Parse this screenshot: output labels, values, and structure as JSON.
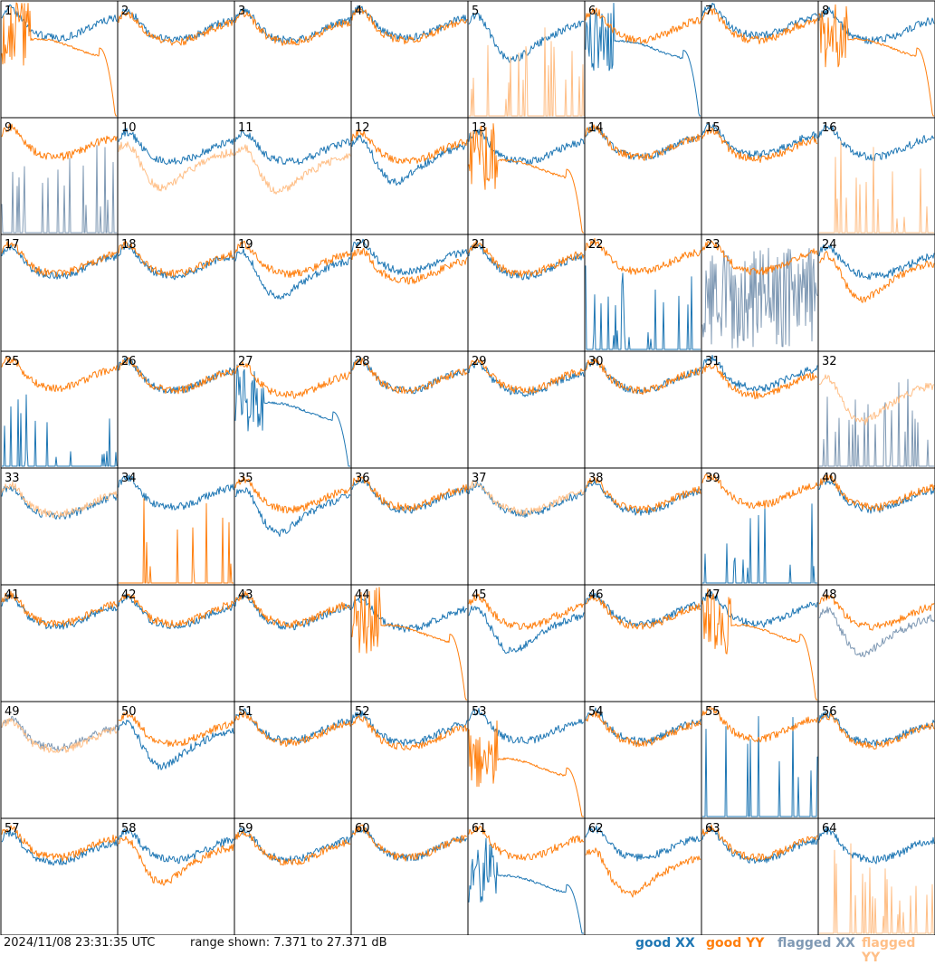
{
  "footer": {
    "timestamp": "2024/11/08 23:31:35 UTC",
    "range_text": "range shown: 7.371 to 27.371 dB"
  },
  "legend": [
    {
      "label": "good XX",
      "color": "#1f77b4"
    },
    {
      "label": "good YY",
      "color": "#ff7f0e"
    },
    {
      "label": "flagged XX",
      "color": "#7f99b4"
    },
    {
      "label": "flagged YY",
      "color": "#ffbf87"
    }
  ],
  "chart_data": {
    "type": "line",
    "title": "",
    "ylim": [
      7.371,
      27.371
    ],
    "y_unit": "dB",
    "grid_layout": "8x8",
    "series_names": [
      "good XX",
      "good YY",
      "flagged XX",
      "flagged YY"
    ],
    "panels": [
      {
        "id": "1",
        "xx": {
          "flag": "good",
          "mode": "normal",
          "level": 0.8
        },
        "yy": {
          "flag": "good",
          "mode": "dropout",
          "level": 0.72
        }
      },
      {
        "id": "2",
        "xx": {
          "flag": "good",
          "mode": "normal",
          "level": 0.78
        },
        "yy": {
          "flag": "good",
          "mode": "normal",
          "level": 0.76
        }
      },
      {
        "id": "3",
        "xx": {
          "flag": "good",
          "mode": "normal",
          "level": 0.78
        },
        "yy": {
          "flag": "good",
          "mode": "normal",
          "level": 0.76
        }
      },
      {
        "id": "4",
        "xx": {
          "flag": "good",
          "mode": "normal",
          "level": 0.8
        },
        "yy": {
          "flag": "good",
          "mode": "normal",
          "level": 0.78
        }
      },
      {
        "id": "5",
        "xx": {
          "flag": "good",
          "mode": "dip",
          "level": 0.75
        },
        "yy": {
          "flag": "flagged",
          "mode": "spikes",
          "level": 0.1
        }
      },
      {
        "id": "6",
        "xx": {
          "flag": "good",
          "mode": "dropout",
          "level": 0.7
        },
        "yy": {
          "flag": "good",
          "mode": "normal",
          "level": 0.78
        }
      },
      {
        "id": "7",
        "xx": {
          "flag": "good",
          "mode": "normal",
          "level": 0.82
        },
        "yy": {
          "flag": "good",
          "mode": "normal",
          "level": 0.78
        }
      },
      {
        "id": "8",
        "xx": {
          "flag": "good",
          "mode": "normal",
          "level": 0.78
        },
        "yy": {
          "flag": "good",
          "mode": "dropout",
          "level": 0.72
        }
      },
      {
        "id": "9",
        "xx": {
          "flag": "flagged",
          "mode": "spikes",
          "level": 0.15
        },
        "yy": {
          "flag": "good",
          "mode": "normal",
          "level": 0.78
        }
      },
      {
        "id": "10",
        "xx": {
          "flag": "good",
          "mode": "normal",
          "level": 0.74
        },
        "yy": {
          "flag": "flagged",
          "mode": "dip",
          "level": 0.65
        }
      },
      {
        "id": "11",
        "xx": {
          "flag": "good",
          "mode": "normal",
          "level": 0.74
        },
        "yy": {
          "flag": "flagged",
          "mode": "dip",
          "level": 0.62
        }
      },
      {
        "id": "12",
        "xx": {
          "flag": "good",
          "mode": "dip",
          "level": 0.7
        },
        "yy": {
          "flag": "good",
          "mode": "normal",
          "level": 0.74
        }
      },
      {
        "id": "13",
        "xx": {
          "flag": "good",
          "mode": "normal",
          "level": 0.74
        },
        "yy": {
          "flag": "good",
          "mode": "dropout",
          "level": 0.68
        }
      },
      {
        "id": "14",
        "xx": {
          "flag": "good",
          "mode": "normal",
          "level": 0.78
        },
        "yy": {
          "flag": "good",
          "mode": "normal",
          "level": 0.78
        }
      },
      {
        "id": "15",
        "xx": {
          "flag": "good",
          "mode": "normal",
          "level": 0.8
        },
        "yy": {
          "flag": "good",
          "mode": "normal",
          "level": 0.76
        }
      },
      {
        "id": "16",
        "xx": {
          "flag": "good",
          "mode": "normal",
          "level": 0.78
        },
        "yy": {
          "flag": "flagged",
          "mode": "spikes",
          "level": 0.12
        }
      },
      {
        "id": "17",
        "xx": {
          "flag": "good",
          "mode": "normal",
          "level": 0.76
        },
        "yy": {
          "flag": "good",
          "mode": "normal",
          "level": 0.78
        }
      },
      {
        "id": "18",
        "xx": {
          "flag": "good",
          "mode": "normal",
          "level": 0.76
        },
        "yy": {
          "flag": "good",
          "mode": "normal",
          "level": 0.78
        }
      },
      {
        "id": "19",
        "xx": {
          "flag": "good",
          "mode": "dip",
          "level": 0.72
        },
        "yy": {
          "flag": "good",
          "mode": "normal",
          "level": 0.78
        }
      },
      {
        "id": "20",
        "xx": {
          "flag": "good",
          "mode": "normal",
          "level": 0.8
        },
        "yy": {
          "flag": "good",
          "mode": "normal",
          "level": 0.72
        }
      },
      {
        "id": "21",
        "xx": {
          "flag": "good",
          "mode": "normal",
          "level": 0.76
        },
        "yy": {
          "flag": "good",
          "mode": "normal",
          "level": 0.78
        }
      },
      {
        "id": "22",
        "xx": {
          "flag": "good",
          "mode": "spikes",
          "level": 0.08
        },
        "yy": {
          "flag": "good",
          "mode": "normal",
          "level": 0.8
        }
      },
      {
        "id": "23",
        "xx": {
          "flag": "flagged",
          "mode": "noise",
          "level": 0.45
        },
        "yy": {
          "flag": "good",
          "mode": "normal",
          "level": 0.8
        }
      },
      {
        "id": "24",
        "xx": {
          "flag": "good",
          "mode": "normal",
          "level": 0.76
        },
        "yy": {
          "flag": "good",
          "mode": "dip",
          "level": 0.7
        }
      },
      {
        "id": "25",
        "xx": {
          "flag": "good",
          "mode": "spikes",
          "level": 0.04
        },
        "yy": {
          "flag": "good",
          "mode": "normal",
          "level": 0.8
        }
      },
      {
        "id": "26",
        "xx": {
          "flag": "good",
          "mode": "normal",
          "level": 0.78
        },
        "yy": {
          "flag": "good",
          "mode": "normal",
          "level": 0.78
        }
      },
      {
        "id": "27",
        "xx": {
          "flag": "good",
          "mode": "dropout",
          "level": 0.6
        },
        "yy": {
          "flag": "good",
          "mode": "normal",
          "level": 0.74
        }
      },
      {
        "id": "28",
        "xx": {
          "flag": "good",
          "mode": "normal",
          "level": 0.78
        },
        "yy": {
          "flag": "good",
          "mode": "normal",
          "level": 0.78
        }
      },
      {
        "id": "29",
        "xx": {
          "flag": "good",
          "mode": "normal",
          "level": 0.76
        },
        "yy": {
          "flag": "good",
          "mode": "normal",
          "level": 0.78
        }
      },
      {
        "id": "30",
        "xx": {
          "flag": "good",
          "mode": "normal",
          "level": 0.78
        },
        "yy": {
          "flag": "good",
          "mode": "normal",
          "level": 0.78
        }
      },
      {
        "id": "31",
        "xx": {
          "flag": "good",
          "mode": "normal",
          "level": 0.8
        },
        "yy": {
          "flag": "good",
          "mode": "normal",
          "level": 0.74
        }
      },
      {
        "id": "32",
        "xx": {
          "flag": "flagged",
          "mode": "spikes",
          "level": 0.08
        },
        "yy": {
          "flag": "flagged",
          "mode": "dip",
          "level": 0.65
        }
      },
      {
        "id": "33",
        "xx": {
          "flag": "good",
          "mode": "normal",
          "level": 0.7
        },
        "yy": {
          "flag": "flagged",
          "mode": "normal",
          "level": 0.72
        }
      },
      {
        "id": "34",
        "xx": {
          "flag": "good",
          "mode": "normal",
          "level": 0.78
        },
        "yy": {
          "flag": "good",
          "mode": "spikes",
          "level": 0.12
        }
      },
      {
        "id": "35",
        "xx": {
          "flag": "good",
          "mode": "dip",
          "level": 0.7
        },
        "yy": {
          "flag": "good",
          "mode": "normal",
          "level": 0.76
        }
      },
      {
        "id": "36",
        "xx": {
          "flag": "good",
          "mode": "normal",
          "level": 0.76
        },
        "yy": {
          "flag": "good",
          "mode": "normal",
          "level": 0.78
        }
      },
      {
        "id": "37",
        "xx": {
          "flag": "good",
          "mode": "normal",
          "level": 0.72
        },
        "yy": {
          "flag": "flagged",
          "mode": "normal",
          "level": 0.74
        }
      },
      {
        "id": "38",
        "xx": {
          "flag": "good",
          "mode": "normal",
          "level": 0.74
        },
        "yy": {
          "flag": "good",
          "mode": "normal",
          "level": 0.76
        }
      },
      {
        "id": "39",
        "xx": {
          "flag": "good",
          "mode": "spikes",
          "level": 0.06
        },
        "yy": {
          "flag": "good",
          "mode": "normal",
          "level": 0.8
        }
      },
      {
        "id": "40",
        "xx": {
          "flag": "good",
          "mode": "normal",
          "level": 0.76
        },
        "yy": {
          "flag": "good",
          "mode": "normal",
          "level": 0.78
        }
      },
      {
        "id": "41",
        "xx": {
          "flag": "good",
          "mode": "normal",
          "level": 0.76
        },
        "yy": {
          "flag": "good",
          "mode": "normal",
          "level": 0.78
        }
      },
      {
        "id": "42",
        "xx": {
          "flag": "good",
          "mode": "normal",
          "level": 0.76
        },
        "yy": {
          "flag": "good",
          "mode": "normal",
          "level": 0.78
        }
      },
      {
        "id": "43",
        "xx": {
          "flag": "good",
          "mode": "normal",
          "level": 0.76
        },
        "yy": {
          "flag": "good",
          "mode": "normal",
          "level": 0.78
        }
      },
      {
        "id": "44",
        "xx": {
          "flag": "good",
          "mode": "normal",
          "level": 0.74
        },
        "yy": {
          "flag": "good",
          "mode": "dropout",
          "level": 0.7
        }
      },
      {
        "id": "45",
        "xx": {
          "flag": "good",
          "mode": "dip",
          "level": 0.68
        },
        "yy": {
          "flag": "good",
          "mode": "normal",
          "level": 0.76
        }
      },
      {
        "id": "46",
        "xx": {
          "flag": "good",
          "mode": "normal",
          "level": 0.78
        },
        "yy": {
          "flag": "good",
          "mode": "normal",
          "level": 0.76
        }
      },
      {
        "id": "47",
        "xx": {
          "flag": "good",
          "mode": "normal",
          "level": 0.78
        },
        "yy": {
          "flag": "good",
          "mode": "dropout",
          "level": 0.7
        }
      },
      {
        "id": "48",
        "xx": {
          "flag": "flagged",
          "mode": "dip",
          "level": 0.66
        },
        "yy": {
          "flag": "good",
          "mode": "normal",
          "level": 0.76
        }
      },
      {
        "id": "49",
        "xx": {
          "flag": "flagged",
          "mode": "normal",
          "level": 0.72
        },
        "yy": {
          "flag": "flagged",
          "mode": "normal",
          "level": 0.7
        }
      },
      {
        "id": "50",
        "xx": {
          "flag": "good",
          "mode": "dip",
          "level": 0.7
        },
        "yy": {
          "flag": "good",
          "mode": "normal",
          "level": 0.76
        }
      },
      {
        "id": "51",
        "xx": {
          "flag": "good",
          "mode": "normal",
          "level": 0.78
        },
        "yy": {
          "flag": "good",
          "mode": "normal",
          "level": 0.76
        }
      },
      {
        "id": "52",
        "xx": {
          "flag": "good",
          "mode": "normal",
          "level": 0.76
        },
        "yy": {
          "flag": "good",
          "mode": "normal",
          "level": 0.72
        }
      },
      {
        "id": "53",
        "xx": {
          "flag": "good",
          "mode": "normal",
          "level": 0.78
        },
        "yy": {
          "flag": "good",
          "mode": "dropout",
          "level": 0.55
        }
      },
      {
        "id": "54",
        "xx": {
          "flag": "good",
          "mode": "normal",
          "level": 0.78
        },
        "yy": {
          "flag": "good",
          "mode": "normal",
          "level": 0.76
        }
      },
      {
        "id": "55",
        "xx": {
          "flag": "good",
          "mode": "spikes",
          "level": 0.2
        },
        "yy": {
          "flag": "good",
          "mode": "normal",
          "level": 0.8
        }
      },
      {
        "id": "56",
        "xx": {
          "flag": "good",
          "mode": "normal",
          "level": 0.76
        },
        "yy": {
          "flag": "good",
          "mode": "normal",
          "level": 0.74
        }
      },
      {
        "id": "57",
        "xx": {
          "flag": "good",
          "mode": "normal",
          "level": 0.74
        },
        "yy": {
          "flag": "good",
          "mode": "normal",
          "level": 0.78
        }
      },
      {
        "id": "58",
        "xx": {
          "flag": "good",
          "mode": "normal",
          "level": 0.76
        },
        "yy": {
          "flag": "good",
          "mode": "dip",
          "level": 0.7
        }
      },
      {
        "id": "59",
        "xx": {
          "flag": "good",
          "mode": "normal",
          "level": 0.76
        },
        "yy": {
          "flag": "good",
          "mode": "normal",
          "level": 0.74
        }
      },
      {
        "id": "60",
        "xx": {
          "flag": "good",
          "mode": "normal",
          "level": 0.78
        },
        "yy": {
          "flag": "good",
          "mode": "normal",
          "level": 0.78
        }
      },
      {
        "id": "61",
        "xx": {
          "flag": "good",
          "mode": "dropout",
          "level": 0.55
        },
        "yy": {
          "flag": "good",
          "mode": "normal",
          "level": 0.78
        }
      },
      {
        "id": "62",
        "xx": {
          "flag": "good",
          "mode": "normal",
          "level": 0.78
        },
        "yy": {
          "flag": "good",
          "mode": "dip",
          "level": 0.6
        }
      },
      {
        "id": "63",
        "xx": {
          "flag": "good",
          "mode": "normal",
          "level": 0.76
        },
        "yy": {
          "flag": "good",
          "mode": "normal",
          "level": 0.78
        }
      },
      {
        "id": "64",
        "xx": {
          "flag": "good",
          "mode": "normal",
          "level": 0.76
        },
        "yy": {
          "flag": "flagged",
          "mode": "spikes",
          "level": 0.14
        }
      }
    ]
  }
}
